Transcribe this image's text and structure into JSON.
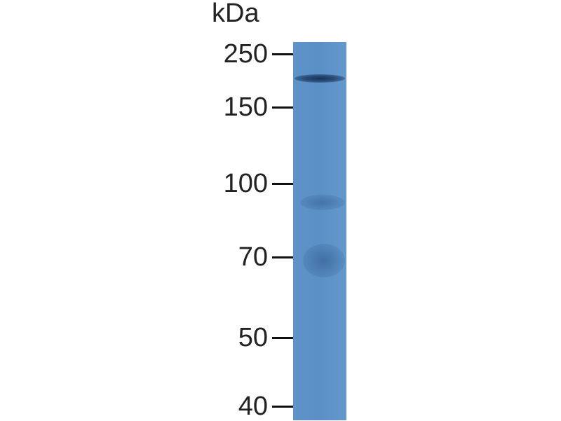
{
  "unit_label": "kDa",
  "markers": [
    {
      "label": "250",
      "kda": 250
    },
    {
      "label": "150",
      "kda": 150
    },
    {
      "label": "100",
      "kda": 100
    },
    {
      "label": "70",
      "kda": 70
    },
    {
      "label": "50",
      "kda": 50
    },
    {
      "label": "40",
      "kda": 40
    }
  ],
  "colors": {
    "lane": "#5c92c7",
    "band": "#1f3f66",
    "text": "#222222"
  }
}
